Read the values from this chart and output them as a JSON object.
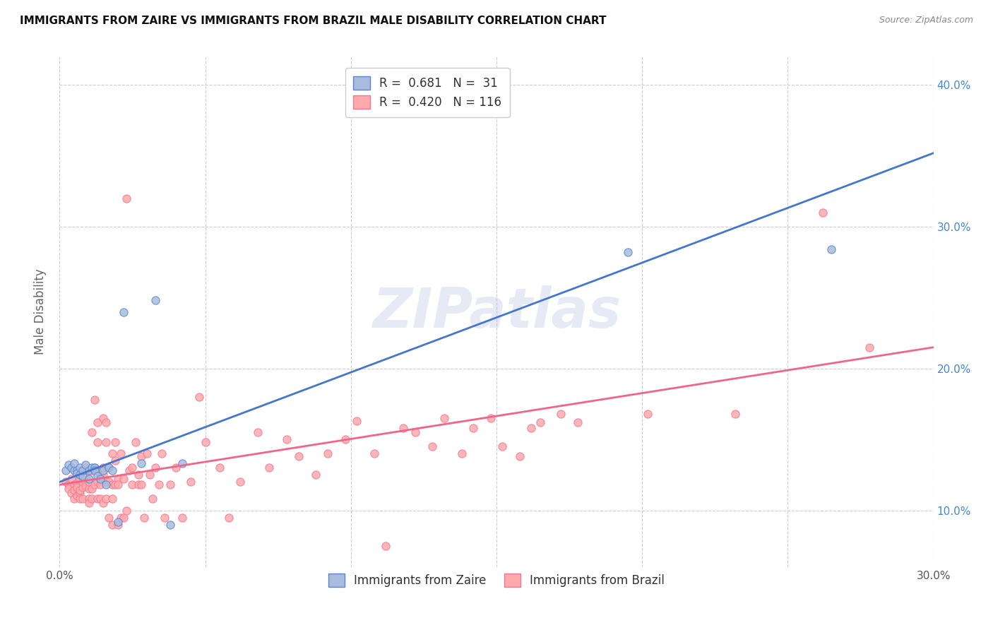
{
  "title": "IMMIGRANTS FROM ZAIRE VS IMMIGRANTS FROM BRAZIL MALE DISABILITY CORRELATION CHART",
  "source": "Source: ZipAtlas.com",
  "ylabel": "Male Disability",
  "xlim": [
    0.0,
    0.3
  ],
  "ylim": [
    0.06,
    0.42
  ],
  "x_ticks": [
    0.0,
    0.05,
    0.1,
    0.15,
    0.2,
    0.25,
    0.3
  ],
  "y_ticks": [
    0.1,
    0.2,
    0.3,
    0.4
  ],
  "x_tick_labels": [
    "0.0%",
    "",
    "",
    "",
    "",
    "",
    "30.0%"
  ],
  "y_tick_labels_right": [
    "10.0%",
    "20.0%",
    "30.0%",
    "40.0%"
  ],
  "legend_zaire_label": "R =  0.681   N =  31",
  "legend_brazil_label": "R =  0.420   N = 116",
  "legend_bottom_zaire": "Immigrants from Zaire",
  "legend_bottom_brazil": "Immigrants from Brazil",
  "color_zaire_fill": "#AABBDD",
  "color_brazil_fill": "#FFAAAA",
  "color_zaire_edge": "#5588CC",
  "color_brazil_edge": "#EE7799",
  "color_zaire_line": "#4477CC",
  "color_brazil_line": "#EE6688",
  "watermark": "ZIPatlas",
  "zaire_points": [
    [
      0.002,
      0.128
    ],
    [
      0.003,
      0.132
    ],
    [
      0.004,
      0.13
    ],
    [
      0.005,
      0.128
    ],
    [
      0.005,
      0.133
    ],
    [
      0.006,
      0.128
    ],
    [
      0.006,
      0.126
    ],
    [
      0.007,
      0.13
    ],
    [
      0.007,
      0.125
    ],
    [
      0.008,
      0.124
    ],
    [
      0.008,
      0.128
    ],
    [
      0.009,
      0.132
    ],
    [
      0.01,
      0.128
    ],
    [
      0.01,
      0.122
    ],
    [
      0.011,
      0.13
    ],
    [
      0.012,
      0.13
    ],
    [
      0.012,
      0.128
    ],
    [
      0.013,
      0.124
    ],
    [
      0.014,
      0.122
    ],
    [
      0.015,
      0.128
    ],
    [
      0.016,
      0.118
    ],
    [
      0.017,
      0.13
    ],
    [
      0.018,
      0.128
    ],
    [
      0.02,
      0.092
    ],
    [
      0.022,
      0.24
    ],
    [
      0.028,
      0.133
    ],
    [
      0.033,
      0.248
    ],
    [
      0.038,
      0.09
    ],
    [
      0.042,
      0.133
    ],
    [
      0.195,
      0.282
    ],
    [
      0.265,
      0.284
    ]
  ],
  "brazil_points": [
    [
      0.002,
      0.12
    ],
    [
      0.003,
      0.118
    ],
    [
      0.003,
      0.115
    ],
    [
      0.004,
      0.112
    ],
    [
      0.004,
      0.122
    ],
    [
      0.005,
      0.118
    ],
    [
      0.005,
      0.108
    ],
    [
      0.005,
      0.114
    ],
    [
      0.006,
      0.11
    ],
    [
      0.006,
      0.119
    ],
    [
      0.006,
      0.116
    ],
    [
      0.007,
      0.112
    ],
    [
      0.007,
      0.108
    ],
    [
      0.007,
      0.122
    ],
    [
      0.007,
      0.114
    ],
    [
      0.008,
      0.116
    ],
    [
      0.008,
      0.12
    ],
    [
      0.008,
      0.108
    ],
    [
      0.009,
      0.117
    ],
    [
      0.009,
      0.13
    ],
    [
      0.009,
      0.125
    ],
    [
      0.01,
      0.115
    ],
    [
      0.01,
      0.108
    ],
    [
      0.01,
      0.105
    ],
    [
      0.01,
      0.12
    ],
    [
      0.011,
      0.155
    ],
    [
      0.011,
      0.128
    ],
    [
      0.011,
      0.115
    ],
    [
      0.011,
      0.108
    ],
    [
      0.012,
      0.118
    ],
    [
      0.012,
      0.178
    ],
    [
      0.012,
      0.13
    ],
    [
      0.013,
      0.12
    ],
    [
      0.013,
      0.162
    ],
    [
      0.013,
      0.108
    ],
    [
      0.013,
      0.148
    ],
    [
      0.014,
      0.125
    ],
    [
      0.014,
      0.108
    ],
    [
      0.014,
      0.118
    ],
    [
      0.015,
      0.13
    ],
    [
      0.015,
      0.165
    ],
    [
      0.015,
      0.125
    ],
    [
      0.015,
      0.105
    ],
    [
      0.016,
      0.148
    ],
    [
      0.016,
      0.12
    ],
    [
      0.016,
      0.108
    ],
    [
      0.016,
      0.162
    ],
    [
      0.017,
      0.13
    ],
    [
      0.017,
      0.095
    ],
    [
      0.017,
      0.12
    ],
    [
      0.018,
      0.108
    ],
    [
      0.018,
      0.14
    ],
    [
      0.018,
      0.118
    ],
    [
      0.018,
      0.09
    ],
    [
      0.019,
      0.135
    ],
    [
      0.019,
      0.118
    ],
    [
      0.019,
      0.148
    ],
    [
      0.02,
      0.122
    ],
    [
      0.02,
      0.09
    ],
    [
      0.02,
      0.118
    ],
    [
      0.021,
      0.095
    ],
    [
      0.021,
      0.14
    ],
    [
      0.022,
      0.122
    ],
    [
      0.022,
      0.095
    ],
    [
      0.023,
      0.1
    ],
    [
      0.023,
      0.32
    ],
    [
      0.024,
      0.128
    ],
    [
      0.025,
      0.118
    ],
    [
      0.025,
      0.13
    ],
    [
      0.026,
      0.148
    ],
    [
      0.027,
      0.125
    ],
    [
      0.027,
      0.118
    ],
    [
      0.028,
      0.138
    ],
    [
      0.028,
      0.118
    ],
    [
      0.029,
      0.095
    ],
    [
      0.03,
      0.14
    ],
    [
      0.031,
      0.125
    ],
    [
      0.032,
      0.108
    ],
    [
      0.033,
      0.13
    ],
    [
      0.034,
      0.118
    ],
    [
      0.035,
      0.14
    ],
    [
      0.036,
      0.095
    ],
    [
      0.038,
      0.118
    ],
    [
      0.04,
      0.13
    ],
    [
      0.042,
      0.095
    ],
    [
      0.045,
      0.12
    ],
    [
      0.048,
      0.18
    ],
    [
      0.05,
      0.148
    ],
    [
      0.055,
      0.13
    ],
    [
      0.058,
      0.095
    ],
    [
      0.062,
      0.12
    ],
    [
      0.068,
      0.155
    ],
    [
      0.072,
      0.13
    ],
    [
      0.078,
      0.15
    ],
    [
      0.082,
      0.138
    ],
    [
      0.088,
      0.125
    ],
    [
      0.092,
      0.14
    ],
    [
      0.098,
      0.15
    ],
    [
      0.102,
      0.163
    ],
    [
      0.108,
      0.14
    ],
    [
      0.112,
      0.075
    ],
    [
      0.118,
      0.158
    ],
    [
      0.122,
      0.155
    ],
    [
      0.128,
      0.145
    ],
    [
      0.132,
      0.165
    ],
    [
      0.138,
      0.14
    ],
    [
      0.142,
      0.158
    ],
    [
      0.148,
      0.165
    ],
    [
      0.152,
      0.145
    ],
    [
      0.158,
      0.138
    ],
    [
      0.162,
      0.158
    ],
    [
      0.165,
      0.162
    ],
    [
      0.172,
      0.168
    ],
    [
      0.178,
      0.162
    ],
    [
      0.202,
      0.168
    ],
    [
      0.232,
      0.168
    ],
    [
      0.262,
      0.31
    ],
    [
      0.278,
      0.215
    ]
  ],
  "zaire_line_x": [
    0.0,
    0.3
  ],
  "zaire_line_y": [
    0.12,
    0.352
  ],
  "brazil_line_x": [
    0.0,
    0.3
  ],
  "brazil_line_y": [
    0.118,
    0.215
  ]
}
